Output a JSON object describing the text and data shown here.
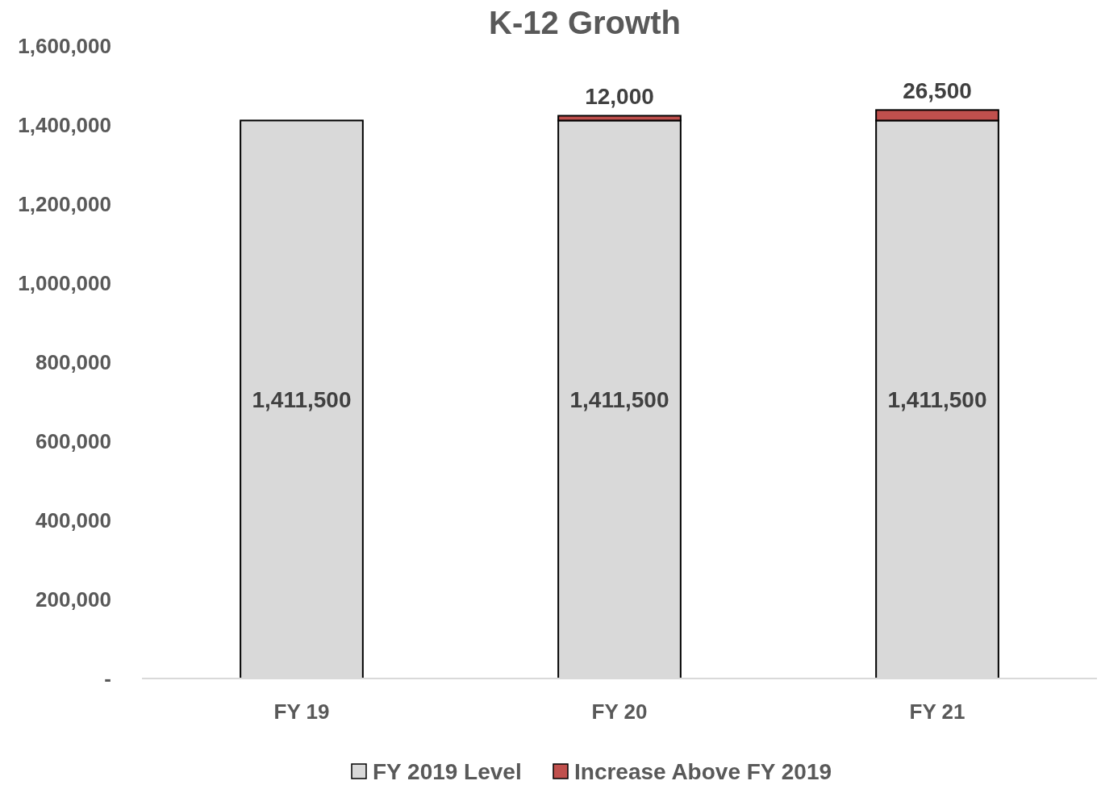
{
  "chart_data": {
    "type": "bar",
    "title": "K-12 Growth",
    "categories": [
      "FY 19",
      "FY 20",
      "FY 21"
    ],
    "stacked": true,
    "series": [
      {
        "name": "FY 2019 Level",
        "color": "#d9d9d9",
        "values": [
          1411500,
          1411500,
          1411500
        ],
        "value_labels": [
          "1,411,500",
          "1,411,500",
          "1,411,500"
        ]
      },
      {
        "name": "Increase Above FY 2019",
        "color": "#c0504d",
        "values": [
          null,
          12000,
          26500
        ],
        "value_labels": [
          null,
          "12,000",
          "26,500"
        ]
      }
    ],
    "ylim": [
      0,
      1600000
    ],
    "yticks": [
      {
        "value": 0,
        "label": "-"
      },
      {
        "value": 200000,
        "label": "200,000"
      },
      {
        "value": 400000,
        "label": "400,000"
      },
      {
        "value": 600000,
        "label": "600,000"
      },
      {
        "value": 800000,
        "label": "800,000"
      },
      {
        "value": 1000000,
        "label": "1,000,000"
      },
      {
        "value": 1200000,
        "label": "1,200,000"
      },
      {
        "value": 1400000,
        "label": "1,400,000"
      },
      {
        "value": 1600000,
        "label": "1,600,000"
      }
    ],
    "grid": false,
    "legend": "bottom"
  }
}
